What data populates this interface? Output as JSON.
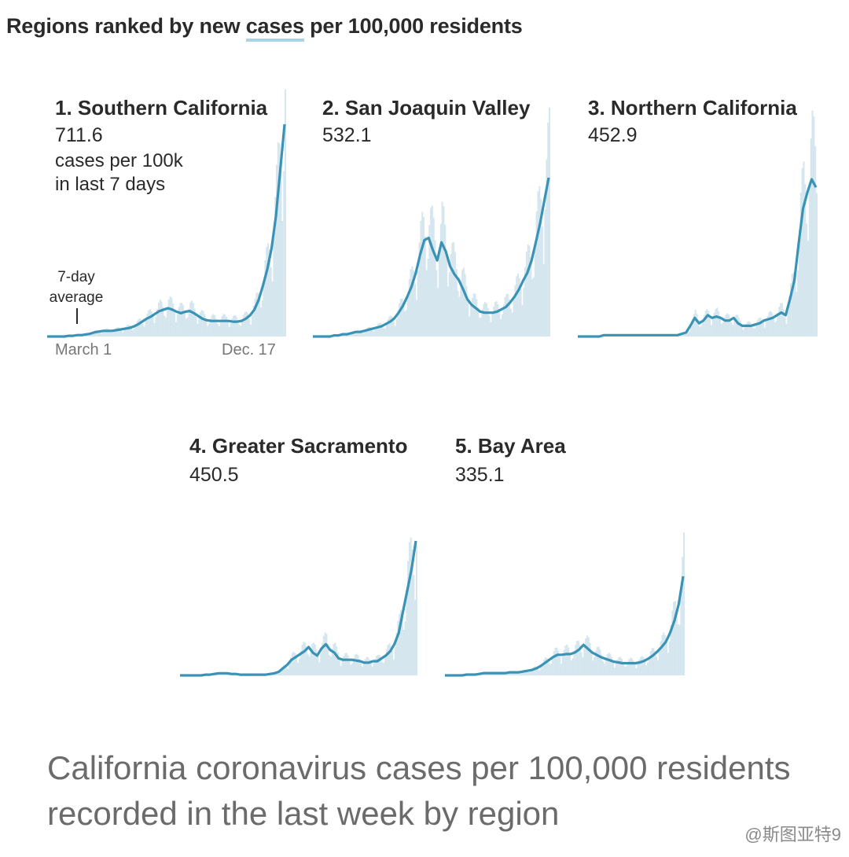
{
  "header": {
    "title_pre": "Regions ranked by new ",
    "title_highlight": "cases",
    "title_post": " per 100,000 residents"
  },
  "caption": "California coronavirus cases per 100,000 residents recorded in the last week by region",
  "watermark": "@斯图亚特9",
  "chart_data": {
    "type": "area",
    "x_start": "March 1",
    "x_end": "Dec. 17",
    "unit_text": [
      "cases per 100k",
      "in last 7 days"
    ],
    "annotation": [
      "7-day",
      "average"
    ],
    "colors": {
      "line": "#3a93b5",
      "bars": "#d5e6ee",
      "title_highlight": "#a9d3e0"
    },
    "regions": [
      {
        "rank_label": "1. Southern California",
        "value": "711.6",
        "avg_series": [
          0,
          0,
          0,
          0,
          0,
          1,
          1,
          2,
          2,
          3,
          4,
          6,
          7,
          8,
          8,
          8,
          9,
          10,
          11,
          12,
          14,
          17,
          21,
          25,
          28,
          32,
          36,
          38,
          40,
          38,
          35,
          33,
          35,
          36,
          33,
          29,
          25,
          23,
          22,
          22,
          22,
          22,
          22,
          21,
          21,
          22,
          25,
          30,
          38,
          52,
          72,
          95,
          125,
          170,
          235,
          300
        ]
      },
      {
        "rank_label": "2. San Joaquin Valley",
        "value": "532.1",
        "avg_series": [
          0,
          0,
          0,
          0,
          0,
          1,
          1,
          2,
          2,
          3,
          4,
          4,
          5,
          6,
          7,
          8,
          9,
          11,
          13,
          16,
          21,
          27,
          35,
          44,
          56,
          72,
          85,
          87,
          76,
          67,
          83,
          75,
          62,
          55,
          50,
          42,
          33,
          28,
          25,
          22,
          21,
          21,
          21,
          22,
          24,
          26,
          30,
          35,
          41,
          49,
          56,
          67,
          83,
          100,
          120,
          140
        ]
      },
      {
        "rank_label": "3. Northern California",
        "value": "452.9",
        "avg_series": [
          0,
          0,
          0,
          0,
          0,
          0,
          1,
          1,
          1,
          1,
          1,
          1,
          1,
          1,
          1,
          1,
          1,
          1,
          1,
          1,
          1,
          1,
          1,
          1,
          2,
          3,
          8,
          14,
          10,
          12,
          16,
          14,
          15,
          14,
          12,
          12,
          14,
          10,
          8,
          8,
          8,
          9,
          10,
          12,
          13,
          14,
          16,
          18,
          16,
          28,
          42,
          70,
          96,
          108,
          118,
          112
        ]
      },
      {
        "rank_label": "4. Greater Sacramento",
        "value": "450.5",
        "avg_series": [
          0,
          0,
          0,
          0,
          0,
          0,
          1,
          1,
          2,
          3,
          3,
          3,
          2,
          2,
          1,
          1,
          1,
          1,
          1,
          1,
          1,
          2,
          3,
          5,
          10,
          15,
          22,
          26,
          30,
          34,
          40,
          32,
          28,
          38,
          44,
          36,
          32,
          24,
          22,
          22,
          22,
          21,
          20,
          18,
          18,
          20,
          20,
          24,
          28,
          34,
          44,
          60,
          90,
          120,
          150,
          190
        ]
      },
      {
        "rank_label": "5. Bay Area",
        "value": "335.1",
        "avg_series": [
          0,
          0,
          0,
          0,
          0,
          1,
          1,
          1,
          2,
          3,
          3,
          3,
          3,
          3,
          3,
          4,
          4,
          4,
          5,
          6,
          7,
          9,
          12,
          16,
          20,
          24,
          27,
          27,
          28,
          28,
          30,
          34,
          40,
          35,
          30,
          27,
          24,
          22,
          20,
          18,
          17,
          16,
          16,
          16,
          16,
          17,
          19,
          22,
          26,
          31,
          37,
          44,
          56,
          72,
          94,
          130
        ]
      }
    ]
  }
}
